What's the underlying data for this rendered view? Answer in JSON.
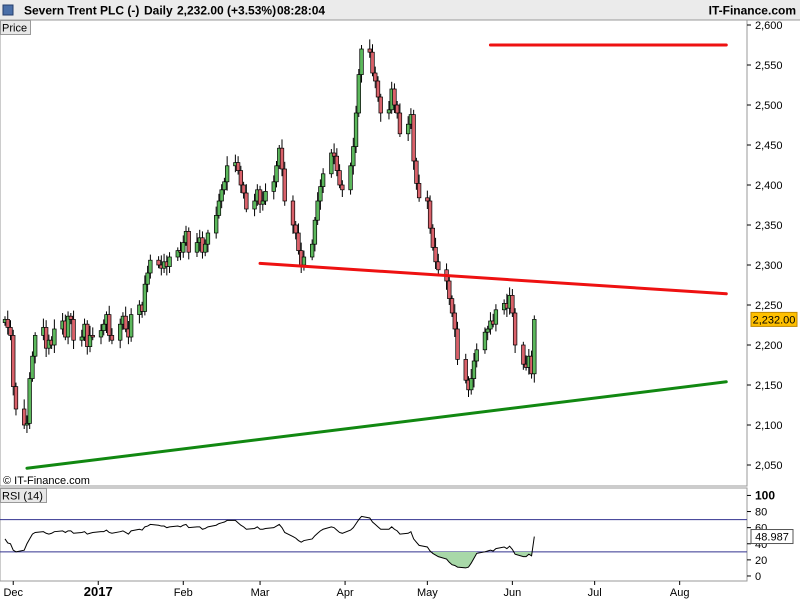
{
  "header": {
    "instrument": "Severn Trent PLC (-)",
    "period": "Daily",
    "last_change": "2,232.00 (+3.53%)",
    "time": "08:28:04",
    "brand": "IT-Finance.com"
  },
  "watermark": "© IT-Finance.com",
  "colors": {
    "up_candle": "#5cb85c",
    "down_candle": "#d9616a",
    "resistance_line": "#ee1111",
    "support_line": "#118811",
    "price_tag": "#ffc000",
    "rsi_line": "#000000",
    "rsi_band": "#33338f",
    "rsi_oversold_fill": "#a8d8a8"
  },
  "chart_data": [
    {
      "type": "candlestick",
      "title": "Severn Trent PLC (-) Daily",
      "ylabel": "Price",
      "ylim": [
        2025,
        2605
      ],
      "y_ticks": [
        {
          "value": 2600,
          "label": "2,600"
        },
        {
          "value": 2550,
          "label": "2,550"
        },
        {
          "value": 2500,
          "label": "2,500"
        },
        {
          "value": 2450,
          "label": "2,450"
        },
        {
          "value": 2400,
          "label": "2,400"
        },
        {
          "value": 2350,
          "label": "2,350"
        },
        {
          "value": 2300,
          "label": "2,300"
        },
        {
          "value": 2250,
          "label": "2,250"
        },
        {
          "value": 2200,
          "label": "2,200"
        },
        {
          "value": 2150,
          "label": "2,150"
        },
        {
          "value": 2100,
          "label": "2,100"
        },
        {
          "value": 2050,
          "label": "2,050"
        }
      ],
      "x_ticks": [
        "Dec",
        "2017",
        "Feb",
        "Mar",
        "Apr",
        "May",
        "Jun",
        "Jul",
        "Aug"
      ],
      "grid": false,
      "last_price": {
        "value": 2232,
        "label": "2,232.00"
      },
      "closes": [
        2232,
        2222,
        2212,
        2148,
        2120,
        2100,
        2102,
        2158,
        2186,
        2212,
        2222,
        2196,
        2206,
        2200,
        2220,
        2230,
        2210,
        2236,
        2232,
        2206,
        2210,
        2226,
        2198,
        2212,
        2210,
        2218,
        2226,
        2238,
        2212,
        2206,
        2226,
        2236,
        2220,
        2210,
        2238,
        2250,
        2242,
        2276,
        2290,
        2306,
        2300,
        2296,
        2304,
        2298,
        2310,
        2318,
        2316,
        2328,
        2342,
        2316,
        2328,
        2334,
        2316,
        2326,
        2340,
        2362,
        2380,
        2394,
        2404,
        2424,
        2428,
        2418,
        2400,
        2390,
        2370,
        2380,
        2394,
        2376,
        2380,
        2392,
        2404,
        2424,
        2446,
        2420,
        2380,
        2350,
        2340,
        2318,
        2300,
        2310,
        2326,
        2356,
        2380,
        2398,
        2414,
        2440,
        2436,
        2418,
        2400,
        2394,
        2424,
        2448,
        2490,
        2538,
        2570,
        2566,
        2540,
        2530,
        2510,
        2490,
        2494,
        2520,
        2500,
        2490,
        2464,
        2476,
        2488,
        2430,
        2402,
        2384,
        2380,
        2346,
        2322,
        2304,
        2294,
        2280,
        2258,
        2240,
        2220,
        2182,
        2156,
        2144,
        2158,
        2180,
        2194,
        2216,
        2220,
        2230,
        2226,
        2244,
        2252,
        2246,
        2262,
        2240,
        2200,
        2176,
        2172,
        2186,
        2164,
        2232
      ],
      "resistance_line": {
        "from": {
          "date": "2017-05-24",
          "price": 2575
        },
        "to": {
          "date": "2017-08-18",
          "price": 2575
        }
      },
      "neckline": {
        "from": {
          "date": "2017-03-01",
          "price": 2302
        },
        "to": {
          "date": "2017-08-18",
          "price": 2264
        }
      },
      "support_line": {
        "from": {
          "date": "2016-12-06",
          "price": 2046
        },
        "to": {
          "date": "2017-08-18",
          "price": 2154
        }
      }
    },
    {
      "type": "line",
      "title": "RSI (14)",
      "ylim": [
        -5,
        108
      ],
      "y_ticks": [
        {
          "value": 100,
          "label": "100"
        },
        {
          "value": 80,
          "label": "80"
        },
        {
          "value": 60,
          "label": "60"
        },
        {
          "value": 40,
          "label": "40"
        },
        {
          "value": 20,
          "label": "20"
        },
        {
          "value": 0,
          "label": "0"
        }
      ],
      "bands": [
        70,
        30
      ],
      "last_value": {
        "value": 48.987,
        "label": "48.987"
      },
      "values": [
        46,
        41,
        40,
        32,
        30,
        32,
        40,
        46,
        52,
        54,
        55,
        53,
        52,
        53,
        55,
        56,
        54,
        56,
        56,
        53,
        54,
        55,
        52,
        53,
        54,
        55,
        55,
        57,
        54,
        53,
        55,
        56,
        54,
        52,
        56,
        58,
        57,
        61,
        62,
        64,
        63,
        62,
        62,
        60,
        61,
        62,
        61,
        63,
        64,
        60,
        61,
        61,
        58,
        59,
        61,
        63,
        65,
        66,
        67,
        69,
        69,
        66,
        63,
        61,
        58,
        59,
        61,
        58,
        58,
        59,
        60,
        62,
        64,
        60,
        54,
        49,
        47,
        44,
        42,
        44,
        46,
        50,
        53,
        56,
        58,
        61,
        60,
        57,
        54,
        53,
        57,
        60,
        65,
        70,
        74,
        72,
        67,
        64,
        61,
        58,
        58,
        61,
        58,
        56,
        52,
        53,
        55,
        46,
        42,
        38,
        36,
        31,
        28,
        26,
        24,
        21,
        17,
        14,
        13,
        11,
        10,
        11,
        16,
        22,
        28,
        30,
        31,
        32,
        31,
        34,
        36,
        34,
        37,
        33,
        27,
        24,
        24,
        27,
        25,
        48.987
      ]
    }
  ]
}
